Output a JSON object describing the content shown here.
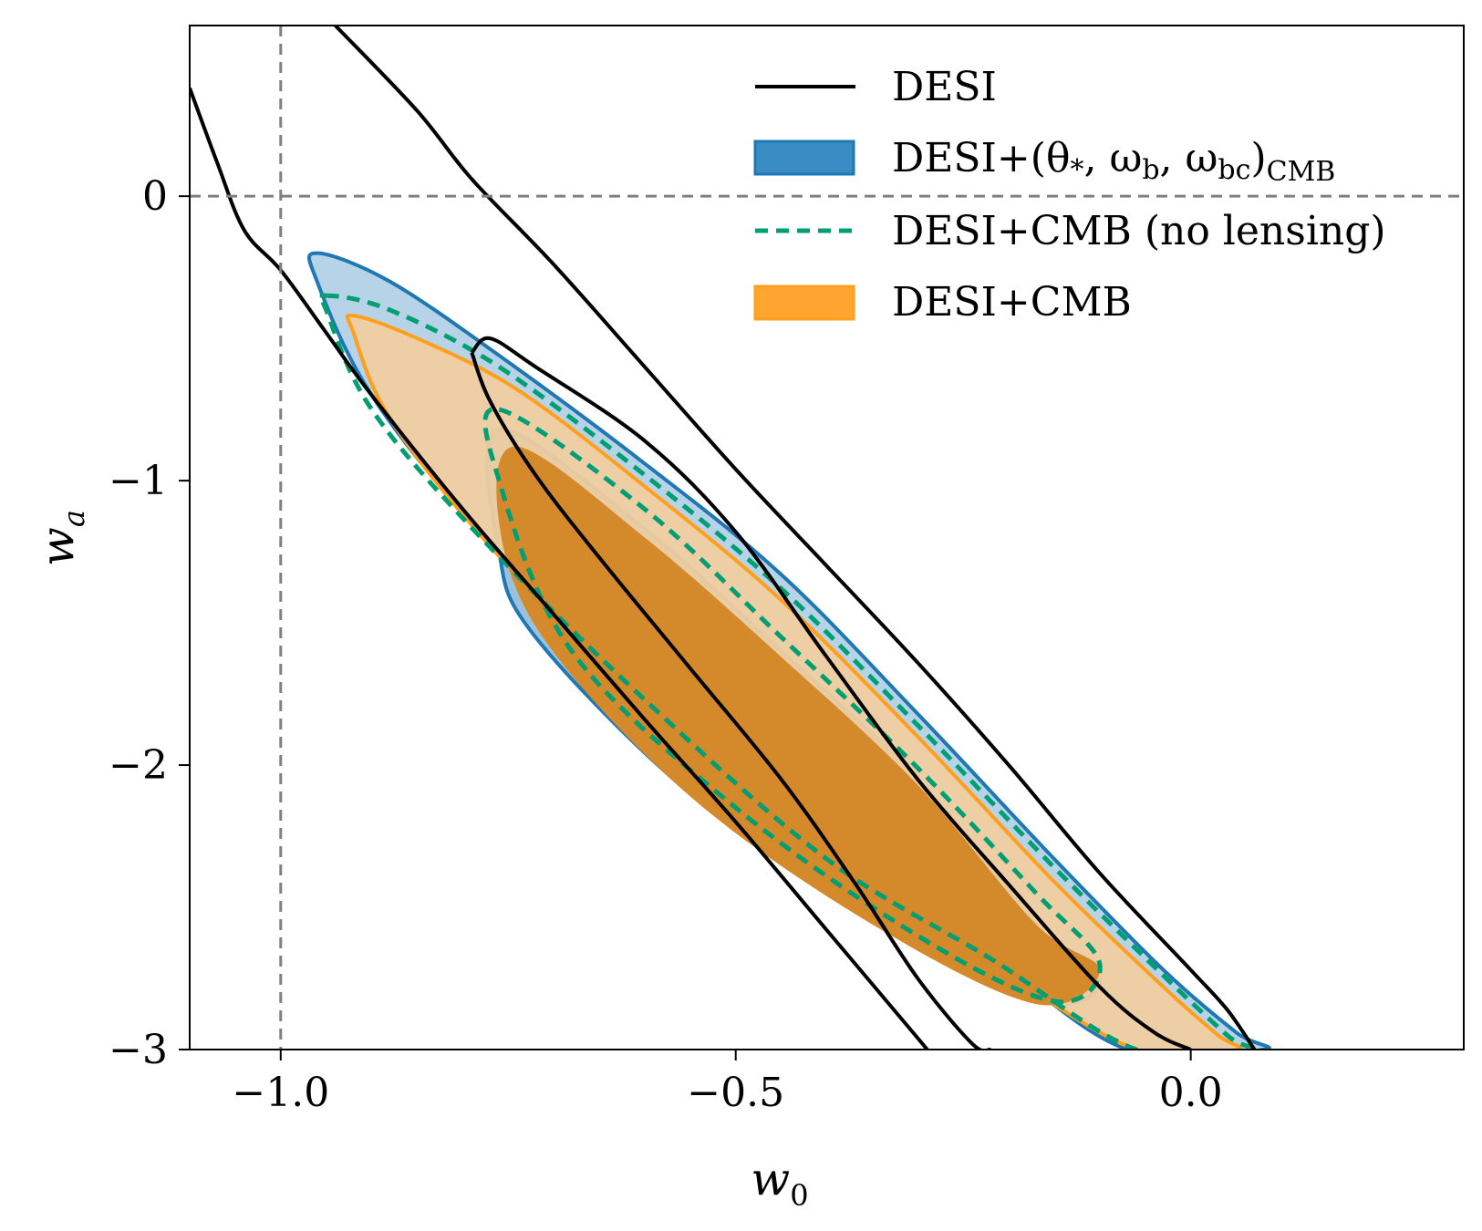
{
  "chart_data": {
    "type": "contour",
    "title": "",
    "xlabel": "w",
    "xlabel_sub": "0",
    "ylabel": "w",
    "ylabel_sub": "a",
    "xlim": [
      -1.1,
      0.3
    ],
    "ylim": [
      -3.0,
      0.6
    ],
    "xticks": [
      -1.0,
      -0.5,
      0.0
    ],
    "xtick_labels": [
      "−1.0",
      "−0.5",
      "0.0"
    ],
    "yticks": [
      0,
      -1,
      -2,
      -3
    ],
    "ytick_labels": [
      "0",
      "−1",
      "−2",
      "−3"
    ],
    "reference_lines": {
      "w0": -1.0,
      "wa": 0.0,
      "color": "#808080",
      "style": "dashed"
    },
    "legend_position": "top-right",
    "colors": {
      "desi": "#000000",
      "cmb_params": "#1f77b4",
      "no_lensing": "#009e73",
      "desi_cmb": "#ff9f1c"
    },
    "series": [
      {
        "name": "DESI",
        "legend": {
          "pre": "DESI",
          "post": ""
        },
        "style": "line",
        "contours": [
          {
            "level": "outer-1",
            "points": [
              [
                -1.1,
                0.38
              ],
              [
                -1.07,
                0.12
              ],
              [
                -1.04,
                -0.12
              ],
              [
                -1.0,
                -0.26
              ],
              [
                -0.95,
                -0.48
              ],
              [
                -0.9,
                -0.7
              ],
              [
                -0.8,
                -1.1
              ],
              [
                -0.7,
                -1.47
              ],
              [
                -0.6,
                -1.84
              ],
              [
                -0.5,
                -2.2
              ],
              [
                -0.4,
                -2.58
              ],
              [
                -0.3,
                -2.96
              ],
              [
                -0.29,
                -3.0
              ]
            ]
          },
          {
            "level": "outer-2",
            "points": [
              [
                -0.94,
                0.6
              ],
              [
                -0.85,
                0.3
              ],
              [
                -0.79,
                0.06
              ],
              [
                -0.7,
                -0.24
              ],
              [
                -0.6,
                -0.6
              ],
              [
                -0.5,
                -0.96
              ],
              [
                -0.4,
                -1.3
              ],
              [
                -0.3,
                -1.64
              ],
              [
                -0.2,
                -2.0
              ],
              [
                -0.1,
                -2.38
              ],
              [
                0.0,
                -2.72
              ],
              [
                0.04,
                -2.86
              ],
              [
                0.07,
                -3.0
              ]
            ]
          },
          {
            "level": "inner-left",
            "points": [
              [
                -0.79,
                -0.55
              ],
              [
                -0.77,
                -0.72
              ],
              [
                -0.72,
                -0.98
              ],
              [
                -0.65,
                -1.27
              ],
              [
                -0.55,
                -1.66
              ],
              [
                -0.45,
                -2.05
              ],
              [
                -0.37,
                -2.41
              ],
              [
                -0.3,
                -2.75
              ],
              [
                -0.24,
                -2.98
              ],
              [
                -0.22,
                -3.0
              ]
            ]
          },
          {
            "level": "inner-band",
            "points": [
              [
                -0.79,
                -0.55
              ],
              [
                -0.77,
                -0.5
              ],
              [
                -0.72,
                -0.6
              ],
              [
                -0.6,
                -0.86
              ],
              [
                -0.5,
                -1.18
              ],
              [
                -0.4,
                -1.62
              ],
              [
                -0.3,
                -2.05
              ],
              [
                -0.2,
                -2.42
              ],
              [
                -0.1,
                -2.78
              ],
              [
                -0.04,
                -2.94
              ],
              [
                0.0,
                -3.0
              ]
            ]
          }
        ]
      },
      {
        "name": "DESI+CMB_params",
        "legend": {
          "pre": "DESI+(θ",
          "post": ")"
        },
        "legend_sub_star": "*",
        "legend_sub_b": "b",
        "legend_sub_bc": "bc",
        "legend_sub_cmb": "CMB",
        "legend_omega": "ω",
        "style": "filled",
        "contours": [
          {
            "level": "68%",
            "points": [
              [
                -0.76,
                -0.82
              ],
              [
                -0.6,
                -1.17
              ],
              [
                -0.45,
                -1.6
              ],
              [
                -0.3,
                -2.05
              ],
              [
                -0.17,
                -2.56
              ],
              [
                -0.1,
                -2.75
              ],
              [
                -0.16,
                -2.83
              ],
              [
                -0.35,
                -2.55
              ],
              [
                -0.55,
                -2.1
              ],
              [
                -0.72,
                -1.55
              ],
              [
                -0.76,
                -1.25
              ]
            ]
          },
          {
            "level": "95%",
            "points": [
              [
                -0.96,
                -0.2
              ],
              [
                -0.88,
                -0.3
              ],
              [
                -0.76,
                -0.56
              ],
              [
                -0.6,
                -0.94
              ],
              [
                -0.45,
                -1.33
              ],
              [
                -0.3,
                -1.82
              ],
              [
                -0.15,
                -2.33
              ],
              [
                -0.03,
                -2.72
              ],
              [
                0.05,
                -2.94
              ],
              [
                0.08,
                -3.0
              ],
              [
                -0.07,
                -3.0
              ],
              [
                -0.23,
                -2.65
              ],
              [
                -0.4,
                -2.3
              ],
              [
                -0.6,
                -1.74
              ],
              [
                -0.78,
                -1.18
              ],
              [
                -0.9,
                -0.7
              ],
              [
                -0.96,
                -0.3
              ]
            ]
          }
        ]
      },
      {
        "name": "DESI+CMB (no lensing)",
        "legend": {
          "pre": "DESI+CMB (no lensing)",
          "post": ""
        },
        "style": "dashed",
        "contours": [
          {
            "level": "68%",
            "points": [
              [
                -0.76,
                -0.75
              ],
              [
                -0.6,
                -1.1
              ],
              [
                -0.45,
                -1.55
              ],
              [
                -0.3,
                -2.01
              ],
              [
                -0.17,
                -2.45
              ],
              [
                -0.1,
                -2.7
              ],
              [
                -0.15,
                -2.83
              ],
              [
                -0.3,
                -2.6
              ],
              [
                -0.5,
                -2.15
              ],
              [
                -0.68,
                -1.6
              ],
              [
                -0.76,
                -1.0
              ]
            ]
          },
          {
            "level": "95%",
            "points": [
              [
                -0.95,
                -0.35
              ],
              [
                -0.88,
                -0.4
              ],
              [
                -0.76,
                -0.6
              ],
              [
                -0.6,
                -0.98
              ],
              [
                -0.45,
                -1.38
              ],
              [
                -0.3,
                -1.86
              ],
              [
                -0.15,
                -2.36
              ],
              [
                -0.03,
                -2.74
              ],
              [
                0.04,
                -2.95
              ],
              [
                0.06,
                -3.0
              ],
              [
                -0.06,
                -3.0
              ],
              [
                -0.22,
                -2.68
              ],
              [
                -0.4,
                -2.33
              ],
              [
                -0.6,
                -1.77
              ],
              [
                -0.78,
                -1.2
              ],
              [
                -0.9,
                -0.75
              ],
              [
                -0.95,
                -0.4
              ]
            ]
          }
        ]
      },
      {
        "name": "DESI+CMB",
        "legend": {
          "pre": "DESI+CMB",
          "post": ""
        },
        "style": "filled",
        "contours": [
          {
            "level": "68%",
            "points": [
              [
                -0.74,
                -0.88
              ],
              [
                -0.6,
                -1.2
              ],
              [
                -0.45,
                -1.62
              ],
              [
                -0.3,
                -2.07
              ],
              [
                -0.17,
                -2.56
              ],
              [
                -0.1,
                -2.72
              ],
              [
                -0.17,
                -2.84
              ],
              [
                -0.35,
                -2.56
              ],
              [
                -0.55,
                -2.11
              ],
              [
                -0.71,
                -1.56
              ],
              [
                -0.76,
                -1.15
              ]
            ]
          },
          {
            "level": "95%",
            "points": [
              [
                -0.92,
                -0.42
              ],
              [
                -0.85,
                -0.5
              ],
              [
                -0.74,
                -0.68
              ],
              [
                -0.6,
                -1.02
              ],
              [
                -0.45,
                -1.42
              ],
              [
                -0.3,
                -1.9
              ],
              [
                -0.15,
                -2.41
              ],
              [
                -0.03,
                -2.78
              ],
              [
                0.03,
                -2.95
              ],
              [
                0.05,
                -3.0
              ],
              [
                -0.06,
                -3.0
              ],
              [
                -0.22,
                -2.7
              ],
              [
                -0.4,
                -2.35
              ],
              [
                -0.6,
                -1.79
              ],
              [
                -0.77,
                -1.23
              ],
              [
                -0.88,
                -0.78
              ],
              [
                -0.92,
                -0.48
              ]
            ]
          }
        ]
      }
    ]
  }
}
